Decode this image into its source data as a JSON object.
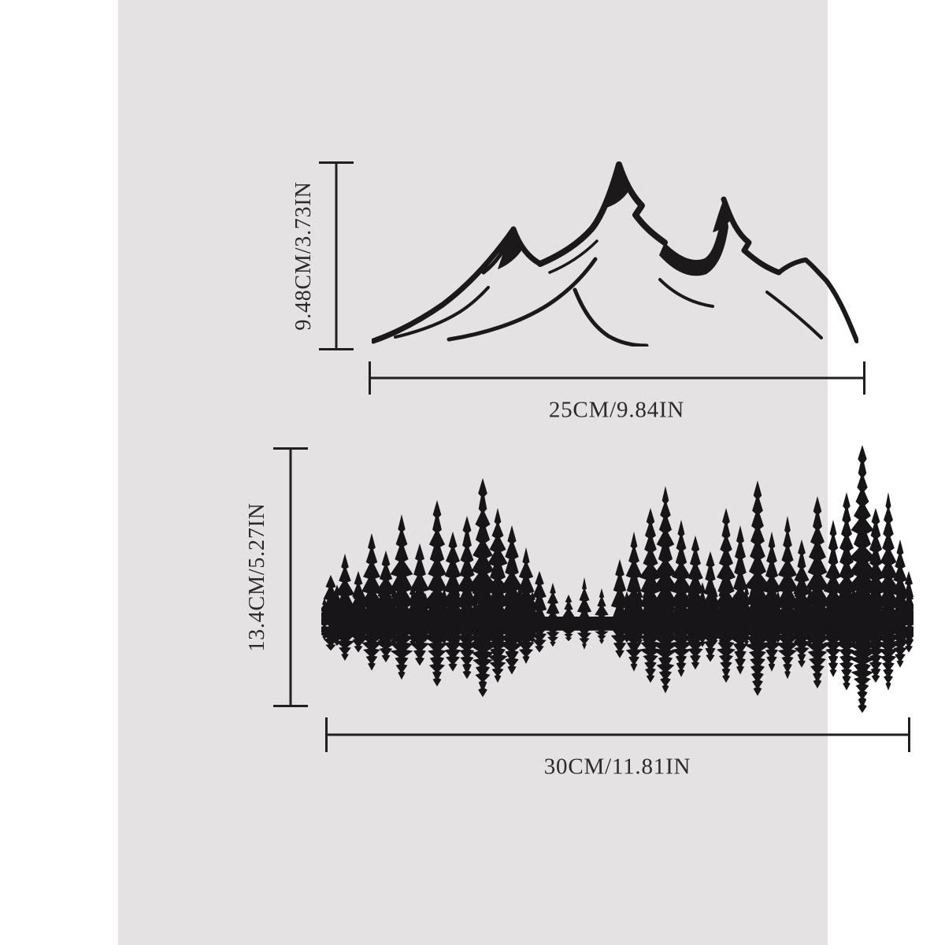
{
  "panel": {
    "background": "#e4e2e3",
    "page_background": "#ffffff",
    "ink_color": "#1b191a",
    "text_color": "#2b292a"
  },
  "figures": {
    "mountain": {
      "name": "mountain silhouette",
      "height_label": "9.48CM/3.73IN",
      "width_label": "25CM/9.84IN"
    },
    "forest": {
      "name": "forest treeline with reflection",
      "height_label": "13.4CM/5.27IN",
      "width_label": "30CM/11.81IN"
    }
  }
}
